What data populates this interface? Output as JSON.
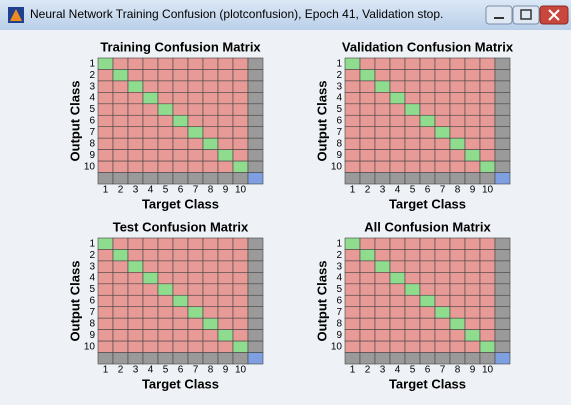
{
  "window": {
    "title": "Neural Network Training Confusion (plotconfusion), Epoch 41, Validation stop."
  },
  "plots": [
    {
      "title": "Training Confusion Matrix",
      "x_label": "Target Class",
      "y_label": "Output Class",
      "ticks": [
        1,
        2,
        3,
        4,
        5,
        6,
        7,
        8,
        9,
        10
      ]
    },
    {
      "title": "Validation Confusion Matrix",
      "x_label": "Target Class",
      "y_label": "Output Class",
      "ticks": [
        1,
        2,
        3,
        4,
        5,
        6,
        7,
        8,
        9,
        10
      ]
    },
    {
      "title": "Test Confusion Matrix",
      "x_label": "Target Class",
      "y_label": "Output Class",
      "ticks": [
        1,
        2,
        3,
        4,
        5,
        6,
        7,
        8,
        9,
        10
      ]
    },
    {
      "title": "All Confusion Matrix",
      "x_label": "Target Class",
      "y_label": "Output Class",
      "ticks": [
        1,
        2,
        3,
        4,
        5,
        6,
        7,
        8,
        9,
        10
      ]
    }
  ]
}
